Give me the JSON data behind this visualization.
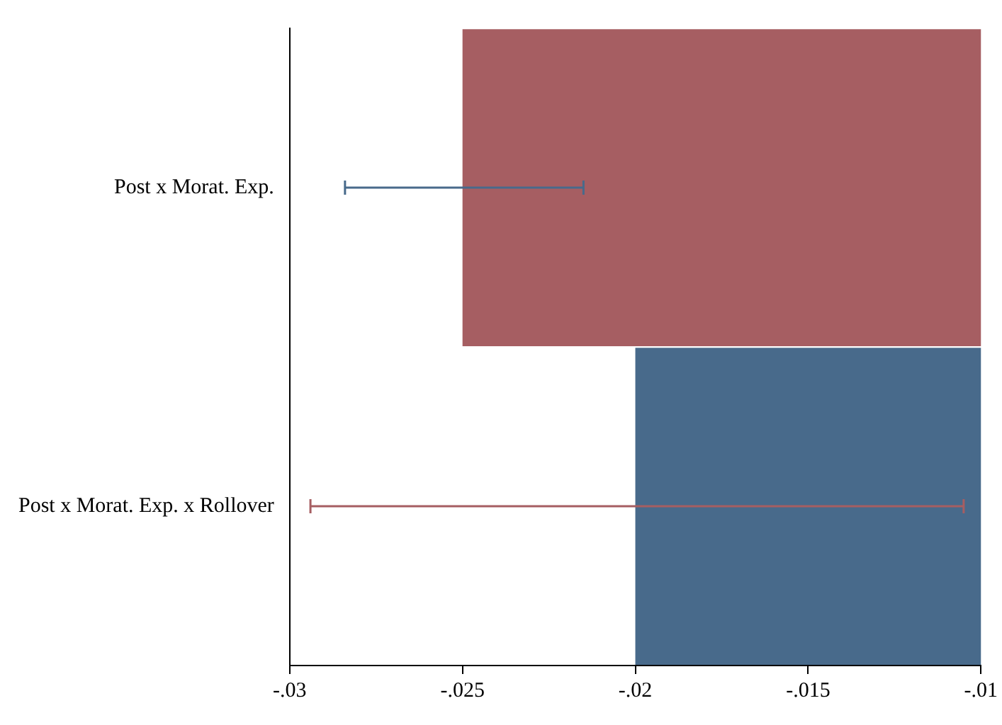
{
  "chart_data": {
    "type": "bar",
    "orientation": "horizontal",
    "categories": [
      "Post x Morat. Exp.",
      "Post x Morat. Exp. x Rollover"
    ],
    "values": [
      -0.025,
      -0.02
    ],
    "colors": [
      "#a65e62",
      "#486a8b"
    ],
    "errors": [
      [
        -0.0284,
        -0.0215
      ],
      [
        -0.0294,
        -0.0105
      ]
    ],
    "xlim": [
      -0.03,
      -0.01
    ],
    "xticks": [
      {
        "value": -0.03,
        "label": "-.03"
      },
      {
        "value": -0.025,
        "label": "-.025"
      },
      {
        "value": -0.02,
        "label": "-.02"
      },
      {
        "value": -0.015,
        "label": "-.015"
      },
      {
        "value": -0.01,
        "label": "-.01"
      }
    ],
    "grid": false,
    "legend": false
  }
}
